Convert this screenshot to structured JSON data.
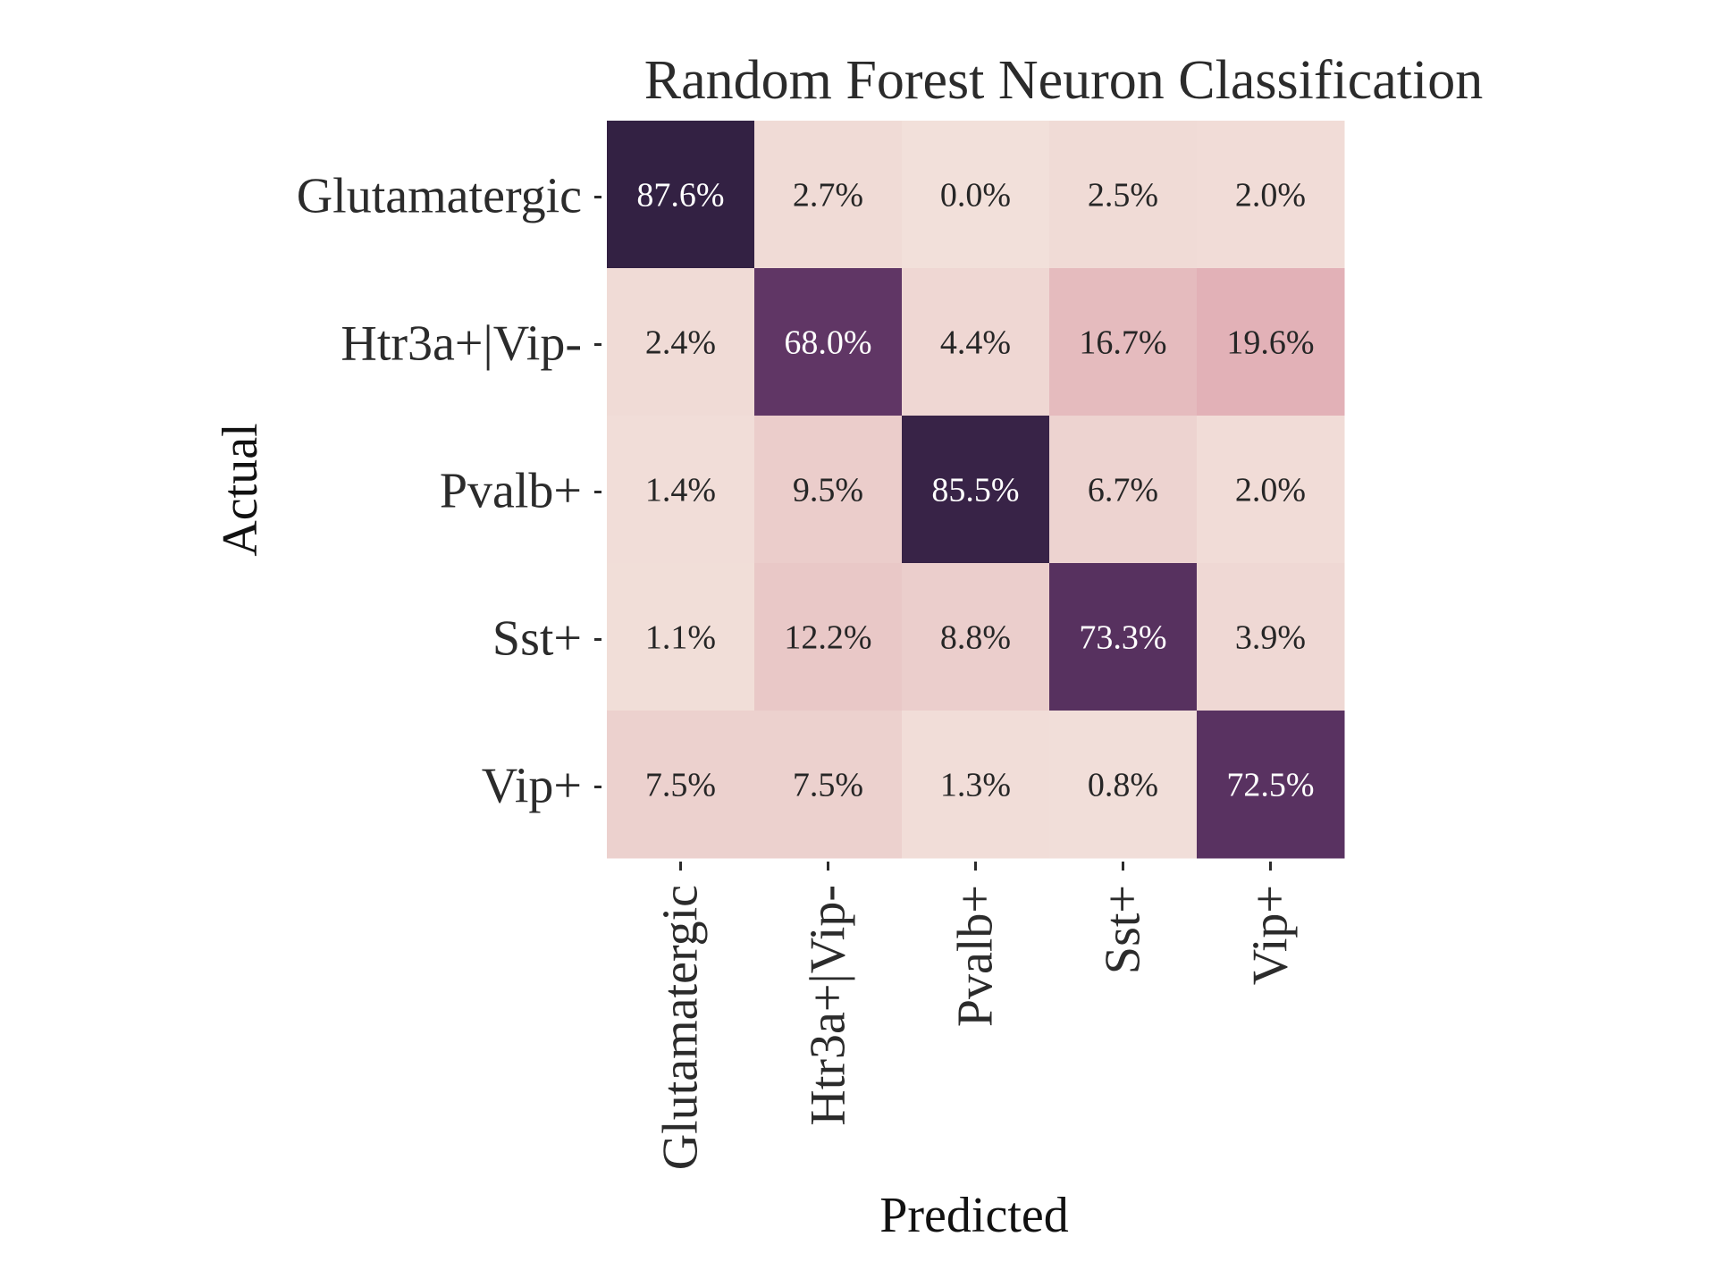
{
  "chart_data": {
    "type": "heatmap",
    "title": "Random Forest Neuron Classification",
    "xlabel": "Predicted",
    "ylabel": "Actual",
    "x_categories": [
      "Glutamatergic",
      "Htr3a+|Vip-",
      "Pvalb+",
      "Sst+",
      "Vip+"
    ],
    "y_categories": [
      "Glutamatergic",
      "Htr3a+|Vip-",
      "Pvalb+",
      "Sst+",
      "Vip+"
    ],
    "values": [
      [
        87.6,
        2.7,
        0.0,
        2.5,
        2.0
      ],
      [
        2.4,
        68.0,
        4.4,
        16.7,
        19.6
      ],
      [
        1.4,
        9.5,
        85.5,
        6.7,
        2.0
      ],
      [
        1.1,
        12.2,
        8.8,
        73.3,
        3.9
      ],
      [
        7.5,
        7.5,
        1.3,
        0.8,
        72.5
      ]
    ],
    "labels": [
      [
        "87.6%",
        "2.7%",
        "0.0%",
        "2.5%",
        "2.0%"
      ],
      [
        "2.4%",
        "68.0%",
        "4.4%",
        "16.7%",
        "19.6%"
      ],
      [
        "1.4%",
        "9.5%",
        "85.5%",
        "6.7%",
        "2.0%"
      ],
      [
        "1.1%",
        "12.2%",
        "8.8%",
        "73.3%",
        "3.9%"
      ],
      [
        "7.5%",
        "7.5%",
        "1.3%",
        "0.8%",
        "72.5%"
      ]
    ],
    "colorbar": false,
    "grid": false,
    "colors": {
      "low": "#f2e0da",
      "high": "#2d1e3e",
      "text_dark": "#262626",
      "text_light": "#ffffff"
    }
  }
}
